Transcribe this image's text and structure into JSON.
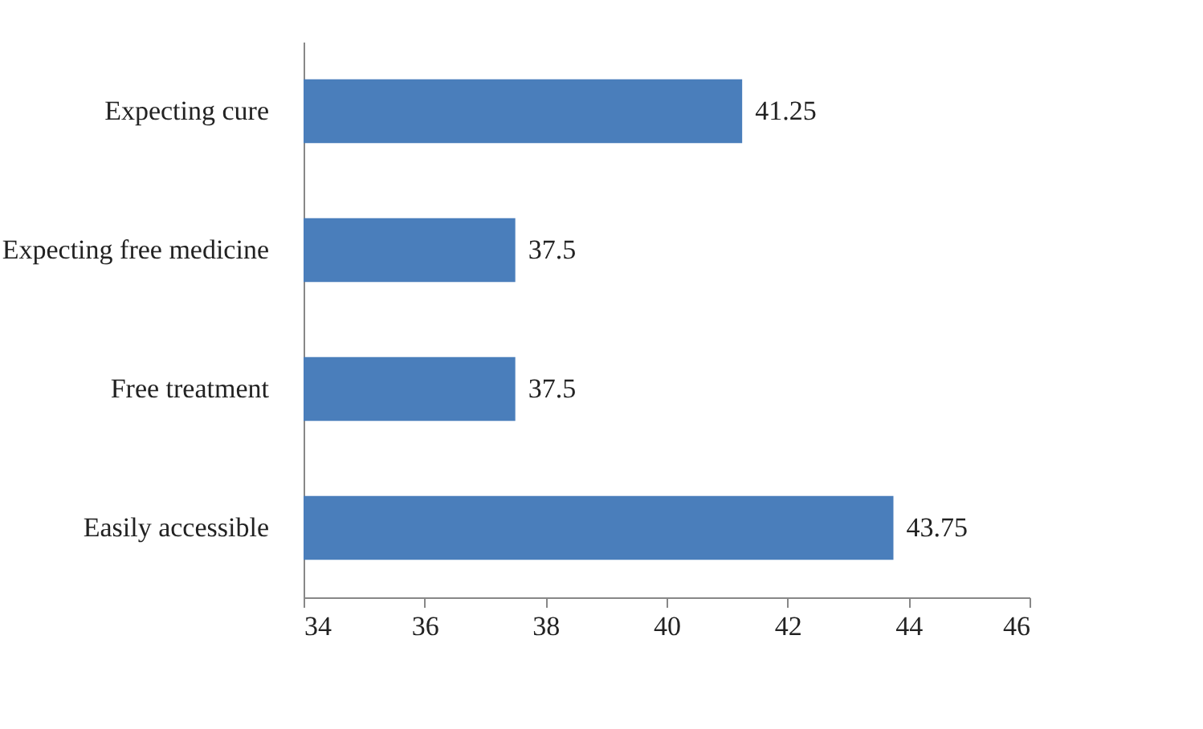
{
  "chart_data": {
    "type": "bar",
    "orientation": "horizontal",
    "categories": [
      "Expecting cure",
      "Expecting free medicine",
      "Free treatment",
      "Easily accessible"
    ],
    "values": [
      41.25,
      37.5,
      37.5,
      43.75
    ],
    "color": "#4a7ebb",
    "xlim": [
      34,
      46
    ],
    "xticks": [
      34,
      36,
      38,
      40,
      42,
      44,
      46
    ],
    "grid": false,
    "data_labels": true
  }
}
